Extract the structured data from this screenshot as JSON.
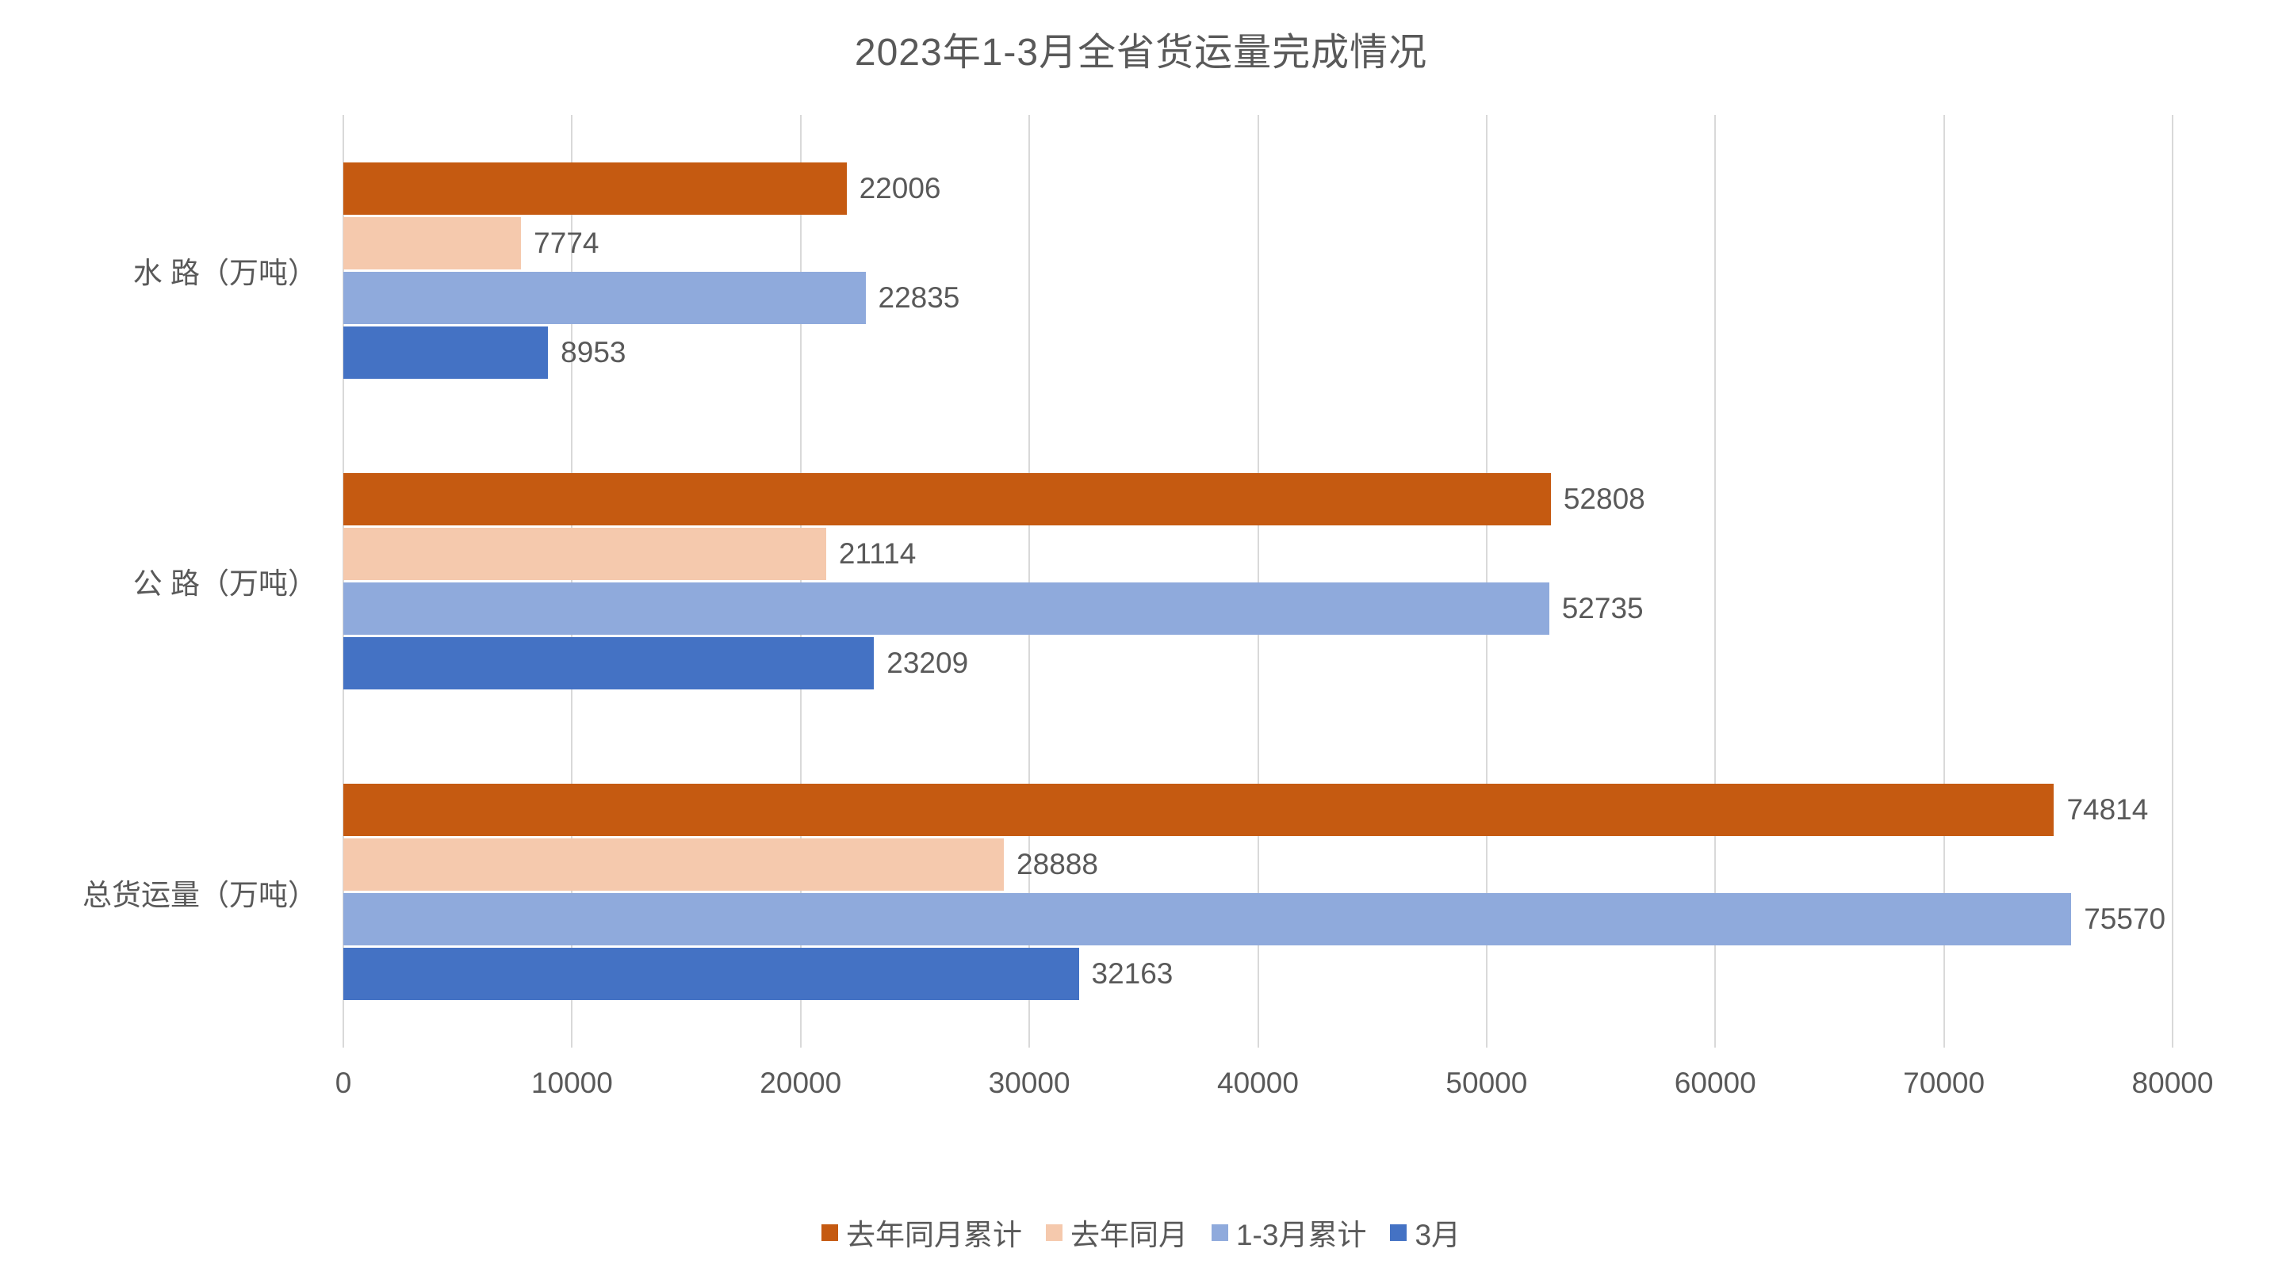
{
  "chart_data": {
    "type": "bar",
    "orientation": "horizontal",
    "title": "2023年1-3月全省货运量完成情况",
    "categories": [
      "水 路（万吨）",
      "公 路（万吨）",
      "总货运量（万吨）"
    ],
    "series": [
      {
        "name": "去年同月累计",
        "color": "#C55A11",
        "values": [
          22006,
          52808,
          74814
        ]
      },
      {
        "name": "去年同月",
        "color": "#F5C9AD",
        "values": [
          7774,
          21114,
          28888
        ]
      },
      {
        "name": "1-3月累计",
        "color": "#8FAADC",
        "values": [
          22835,
          52735,
          75570
        ]
      },
      {
        "name": "3月",
        "color": "#4472C4",
        "values": [
          8953,
          23209,
          32163
        ]
      }
    ],
    "xlim": [
      0,
      80000
    ],
    "xticks": [
      0,
      10000,
      20000,
      30000,
      40000,
      50000,
      60000,
      70000,
      80000
    ],
    "grid": true,
    "value_labels": true,
    "legend_position": "bottom"
  },
  "colors": {
    "text": "#595959",
    "gridline": "#D9D9D9",
    "background": "#FFFFFF"
  }
}
